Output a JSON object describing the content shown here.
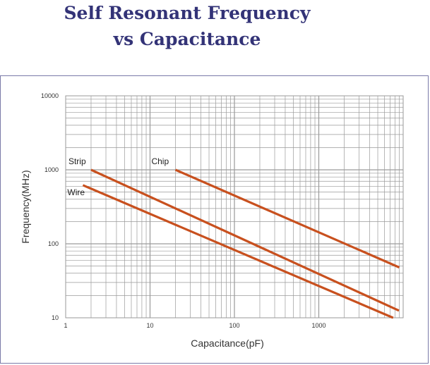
{
  "header": {
    "title_line1": "Self  Resonant Frequency",
    "title_line2": "vs Capacitance"
  },
  "colors": {
    "title": "#333377",
    "line": "#c8501e",
    "grid": "#9a9a9a",
    "frame": "#7a7aa8"
  },
  "chart_data": {
    "type": "line",
    "title": "",
    "xlabel": "Capacitance(pF)",
    "ylabel": "Frequency(MHz)",
    "xscale": "log",
    "yscale": "log",
    "xlim": [
      1,
      10000
    ],
    "ylim": [
      10,
      10000
    ],
    "grid": true,
    "x_ticks": [
      {
        "value": 1,
        "label": "1"
      },
      {
        "value": 10,
        "label": "10"
      },
      {
        "value": 100,
        "label": "100"
      },
      {
        "value": 1000,
        "label": "1000"
      }
    ],
    "y_ticks": [
      {
        "value": 10,
        "label": "10"
      },
      {
        "value": 100,
        "label": "100"
      },
      {
        "value": 1000,
        "label": "1000"
      },
      {
        "value": 10000,
        "label": "10000"
      }
    ],
    "series": [
      {
        "name": "Strip",
        "x": [
          2,
          8900
        ],
        "y": [
          1000,
          12.5
        ]
      },
      {
        "name": "Wire",
        "x": [
          1.6,
          7600
        ],
        "y": [
          620,
          10
        ]
      },
      {
        "name": "Chip",
        "x": [
          20,
          9000
        ],
        "y": [
          1000,
          48
        ]
      }
    ]
  }
}
